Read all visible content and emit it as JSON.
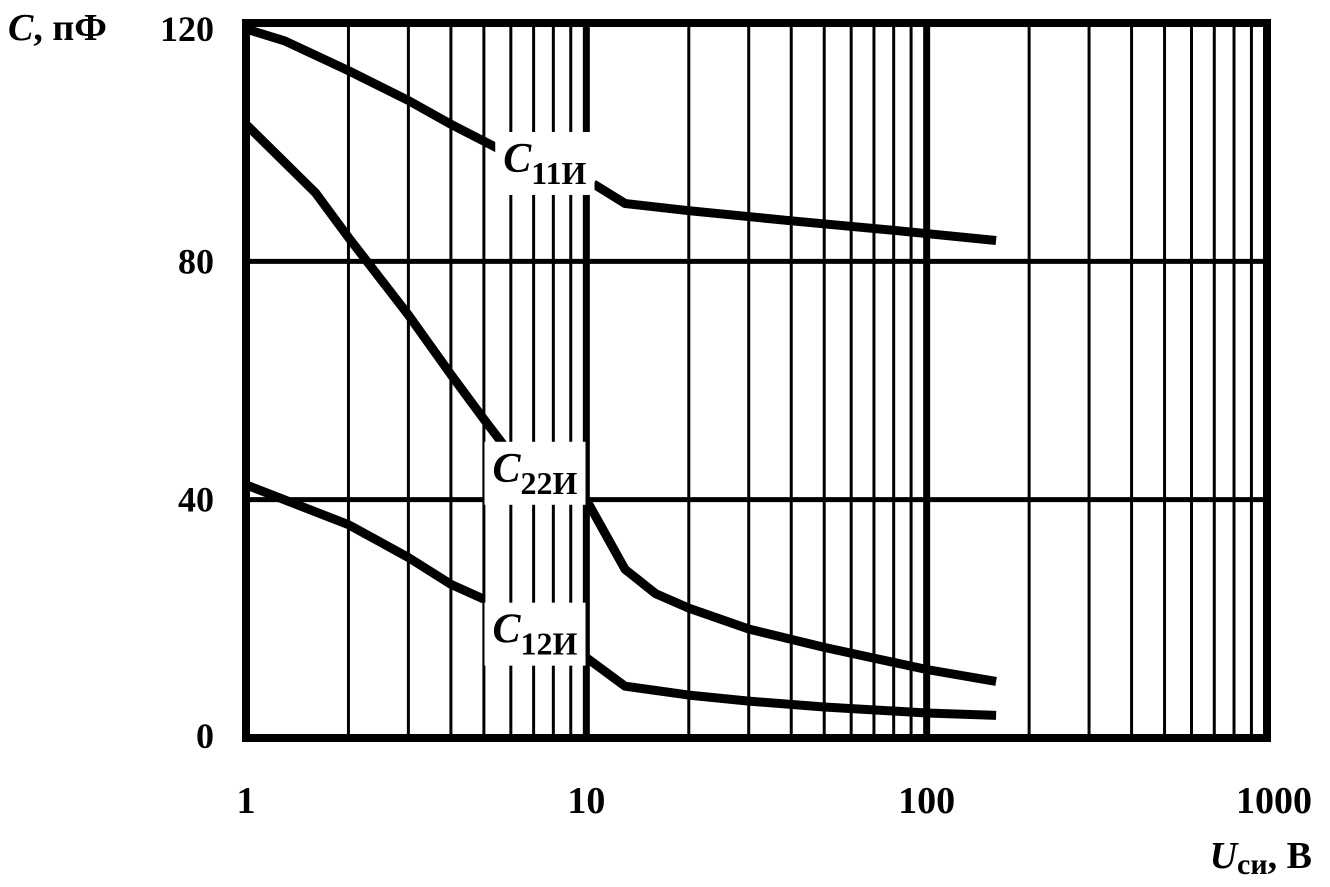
{
  "chart_data": {
    "type": "line",
    "x_scale": "log",
    "xlim": [
      1,
      1000
    ],
    "ylim": [
      0,
      120
    ],
    "grid": true,
    "legend": "inline labels",
    "ylabel": {
      "symbol": "C",
      "unit": ", пФ"
    },
    "xlabel": {
      "symbol": "U",
      "subscript": "си",
      "unit": ", В"
    },
    "x_ticks": [
      {
        "value": 1,
        "label": "1"
      },
      {
        "value": 10,
        "label": "10"
      },
      {
        "value": 100,
        "label": "100"
      },
      {
        "value": 1000,
        "label": "1000"
      }
    ],
    "y_ticks": [
      {
        "value": 0,
        "label": "0"
      },
      {
        "value": 40,
        "label": "40"
      },
      {
        "value": 80,
        "label": "80"
      },
      {
        "value": 120,
        "label": "120"
      }
    ],
    "series": [
      {
        "name": "C11И",
        "label": {
          "base": "C",
          "sub": "11И"
        },
        "segments": [
          {
            "x": [
              1,
              1.3,
              2,
              3,
              4,
              5.7
            ],
            "y": [
              119,
              117,
              112,
              107,
              103,
              98.5
            ]
          },
          {
            "x": [
              10.5,
              13,
              20,
              40,
              80,
              160
            ],
            "y": [
              93,
              89.7,
              88.5,
              86.8,
              85.2,
              83.5
            ]
          }
        ]
      },
      {
        "name": "C22И",
        "label": {
          "base": "C",
          "sub": "22И"
        },
        "segments": [
          {
            "x": [
              1,
              1.6,
              2,
              3,
              4,
              5,
              6.2
            ],
            "y": [
              103,
              91.5,
              84,
              71,
              61,
              53.5,
              46.5
            ]
          },
          {
            "x": [
              10,
              13,
              16,
              20,
              30,
              50,
              100,
              160
            ],
            "y": [
              40,
              28.3,
              24.2,
              21.8,
              18.3,
              15.2,
              11.5,
              9.5
            ]
          }
        ]
      },
      {
        "name": "C12И",
        "label": {
          "base": "C",
          "sub": "12И"
        },
        "segments": [
          {
            "x": [
              1,
              2,
              3,
              4,
              5
            ],
            "y": [
              42.5,
              35.8,
              30.3,
              25.8,
              23.3
            ]
          },
          {
            "x": [
              10,
              13,
              20,
              30,
              50,
              100,
              160
            ],
            "y": [
              13.5,
              8.7,
              7.2,
              6.2,
              5.2,
              4.2,
              3.8
            ]
          }
        ]
      }
    ],
    "series_labels_at": [
      {
        "x": 5.7,
        "y": 95
      },
      {
        "x": 5.3,
        "y": 43
      },
      {
        "x": 5.3,
        "y": 16
      }
    ]
  }
}
